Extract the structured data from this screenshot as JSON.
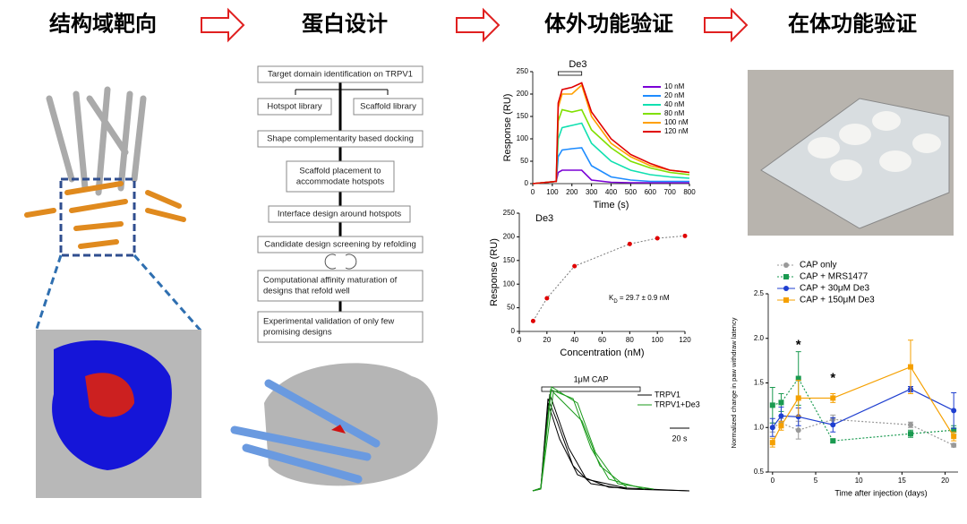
{
  "header": {
    "titles": [
      "结构域靶向",
      "蛋白设计",
      "体外功能验证",
      "在体功能验证"
    ]
  },
  "flowchart": {
    "steps": [
      [
        "Target domain identification on TRPV1"
      ],
      [
        "Hotspot library"
      ],
      [
        "Scaffold library"
      ],
      [
        "Shape complementarity based docking"
      ],
      [
        "Scaffold placement to",
        "accommodate hotspots"
      ],
      [
        "Interface design around hotspots"
      ],
      [
        "Candidate design screening by refolding"
      ],
      [
        "Computational affinity maturation of",
        "designs that refold well"
      ],
      [
        "Experimental validation of only few",
        "promising designs"
      ]
    ]
  },
  "traces": {
    "bar_label": "1μM CAP",
    "legend": [
      "TRPV1",
      "TRPV1+De3"
    ],
    "scale_label": "20 s"
  },
  "chart_data": [
    {
      "type": "line",
      "annotation": "De3",
      "x_label": "Time (s)",
      "y_label": "Response (RU)",
      "x": [
        0,
        120,
        130,
        150,
        200,
        250,
        300,
        400,
        500,
        600,
        700,
        800
      ],
      "series": [
        {
          "name": "10 nM",
          "color": "#7a00d6",
          "values": [
            0,
            5,
            25,
            30,
            30,
            30,
            8,
            3,
            2,
            2,
            2,
            2
          ]
        },
        {
          "name": "20 nM",
          "color": "#1e8cff",
          "values": [
            0,
            5,
            60,
            75,
            78,
            80,
            40,
            15,
            8,
            5,
            5,
            5
          ]
        },
        {
          "name": "40 nM",
          "color": "#10e0b0",
          "values": [
            0,
            5,
            100,
            125,
            130,
            135,
            90,
            50,
            30,
            20,
            15,
            12
          ]
        },
        {
          "name": "80 nM",
          "color": "#80e000",
          "values": [
            0,
            5,
            140,
            165,
            160,
            165,
            120,
            80,
            50,
            35,
            25,
            20
          ]
        },
        {
          "name": "100 nM",
          "color": "#ffa000",
          "values": [
            0,
            5,
            170,
            200,
            200,
            220,
            150,
            90,
            60,
            40,
            30,
            25
          ]
        },
        {
          "name": "120 nM",
          "color": "#e00000",
          "values": [
            0,
            5,
            180,
            210,
            215,
            225,
            160,
            100,
            65,
            45,
            30,
            25
          ]
        }
      ],
      "xlim": [
        0,
        800
      ],
      "xticks": [
        0,
        100,
        200,
        300,
        400,
        500,
        600,
        700,
        800
      ],
      "ylim": [
        0,
        250
      ],
      "yticks": [
        0,
        50,
        100,
        150,
        200,
        250
      ]
    },
    {
      "type": "scatter",
      "title": "De3",
      "x_label": "Concentration (nM)",
      "y_label": "Response (RU)",
      "kd_symbol": "K",
      "kd_subscript": "D",
      "kd_text": " = 29.7 ± 0.9 nM",
      "x": [
        10,
        20,
        40,
        80,
        100,
        120
      ],
      "values": [
        22,
        70,
        138,
        185,
        197,
        202
      ],
      "color": "#e00000",
      "xlim": [
        0,
        120
      ],
      "xticks": [
        0,
        20,
        40,
        60,
        80,
        100,
        120
      ],
      "ylim": [
        0,
        250
      ],
      "yticks": [
        0,
        50,
        100,
        150,
        200,
        250
      ]
    },
    {
      "type": "line",
      "x_label": "Time after injection (days)",
      "y_label": "Normalized change in paw withdraw latency",
      "x": [
        0,
        1,
        3,
        7,
        16,
        21
      ],
      "series": [
        {
          "name": "CAP only",
          "color": "#999999",
          "marker": "circle",
          "dashed": true,
          "values": [
            1.0,
            1.05,
            0.97,
            1.09,
            1.03,
            0.8
          ],
          "errors": [
            0.05,
            0.05,
            0.1,
            0.05,
            0.03,
            0.02
          ]
        },
        {
          "name": "CAP + MRS1477",
          "color": "#1a9a50",
          "marker": "square",
          "dashed": true,
          "values": [
            1.25,
            1.28,
            1.55,
            0.85,
            0.93,
            0.97
          ],
          "errors": [
            0.2,
            0.1,
            0.3,
            0.02,
            0.04,
            0.05
          ]
        },
        {
          "name": "CAP + 30μM De3",
          "color": "#1f3fd0",
          "marker": "circle",
          "dashed": false,
          "values": [
            1.0,
            1.13,
            1.12,
            1.03,
            1.43,
            1.19
          ],
          "errors": [
            0.1,
            0.1,
            0.1,
            0.08,
            0.03,
            0.2
          ]
        },
        {
          "name": "CAP + 150μM De3",
          "color": "#f5a000",
          "marker": "square",
          "dashed": false,
          "values": [
            0.83,
            1.02,
            1.33,
            1.33,
            1.68,
            0.9
          ],
          "errors": [
            0.05,
            0.05,
            0.2,
            0.05,
            0.3,
            0.05
          ]
        }
      ],
      "stars": [
        {
          "x": 3,
          "y": 1.92,
          "text": "*",
          "color": "#1a9a50"
        },
        {
          "x": 7,
          "y": 1.55,
          "text": "*",
          "color": "#f5a000"
        }
      ],
      "xlim": [
        -0.5,
        21.5
      ],
      "xticks": [
        0,
        5,
        10,
        15,
        20
      ],
      "ylim": [
        0.5,
        2.5
      ],
      "yticks": [
        {
          "value": 0.5,
          "label": "0.5"
        },
        {
          "value": 1.0,
          "label": "1.0"
        },
        {
          "value": 1.5,
          "label": "1.5"
        },
        {
          "value": 2.0,
          "label": "2.0"
        },
        {
          "value": 2.5,
          "label": "2.5"
        }
      ]
    }
  ]
}
